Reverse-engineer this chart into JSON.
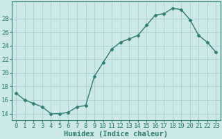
{
  "x": [
    0,
    1,
    2,
    3,
    4,
    5,
    6,
    7,
    8,
    9,
    10,
    11,
    12,
    13,
    14,
    15,
    16,
    17,
    18,
    19,
    20,
    21,
    22,
    23
  ],
  "y": [
    17,
    16,
    15.5,
    15,
    14,
    14,
    14.2,
    15,
    15.2,
    19.5,
    21.5,
    23.5,
    24.5,
    25,
    25.5,
    27,
    28.5,
    28.7,
    29.5,
    29.3,
    27.8,
    25.5,
    24.5,
    23
  ],
  "line_color": "#2e7d6e",
  "marker": "D",
  "marker_size": 2.5,
  "bg_color": "#cce8e8",
  "grid_color": "#aacfcf",
  "tick_color": "#2e7d6e",
  "spine_color": "#2e7d6e",
  "xlabel": "Humidex (Indice chaleur)",
  "ylim": [
    13,
    30.5
  ],
  "yticks": [
    14,
    16,
    18,
    20,
    22,
    24,
    26,
    28
  ],
  "xtick_labels": [
    "0",
    "1",
    "2",
    "3",
    "4",
    "5",
    "6",
    "7",
    "8",
    "9",
    "10",
    "11",
    "12",
    "13",
    "14",
    "15",
    "16",
    "17",
    "18",
    "19",
    "20",
    "21",
    "22",
    "23"
  ],
  "xlabel_fontsize": 7.5,
  "tick_fontsize": 6.5,
  "linewidth": 1.0
}
